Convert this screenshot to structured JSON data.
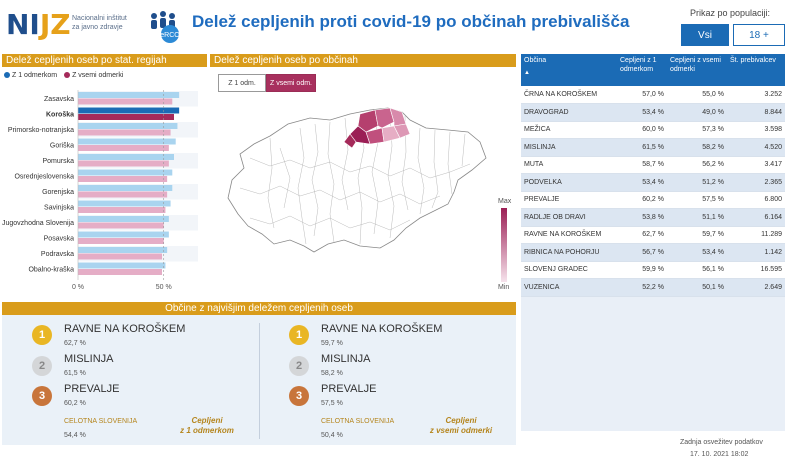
{
  "header": {
    "logo_text_a": "NI",
    "logo_text_b": "JZ",
    "logo_sub_line1": "Nacionalni inštitut",
    "logo_sub_line2": "za javno zdravje",
    "logo_badge": "eRCO",
    "title": "Delež cepljenih proti covid-19 po občinah prebivališča"
  },
  "population_filter": {
    "label": "Prikaz po populaciji:",
    "options": [
      "Vsi",
      "18 +"
    ],
    "selected": "Vsi"
  },
  "region_section": {
    "title": "Delež cepljenih oseb po stat. regijah",
    "legend": [
      "Z 1 odmerkom",
      "Z vsemi odmerki"
    ],
    "colors": {
      "dose1": "#a9d4ef",
      "all": "#e5adc6",
      "selected": "#a52a5a",
      "selected1": "#1b6bb5"
    }
  },
  "chart_data": {
    "type": "bar",
    "orientation": "horizontal",
    "categories": [
      "Zasavska",
      "Koroška",
      "Primorsko-notranjska",
      "Goriška",
      "Pomurska",
      "Osrednjeslovenska",
      "Gorenjska",
      "Savinjska",
      "Jugovzhodna Slovenija",
      "Posavska",
      "Podravska",
      "Obalno-kraška"
    ],
    "selected_category": "Koroška",
    "series": [
      {
        "name": "Z 1 odmerkom",
        "values": [
          59,
          59,
          58,
          57,
          56,
          55,
          55,
          54,
          53,
          53,
          52,
          51
        ]
      },
      {
        "name": "Z vsemi odmerki",
        "values": [
          55,
          56,
          54,
          53,
          53,
          52,
          52,
          51,
          50,
          50,
          49,
          49
        ]
      }
    ],
    "x_ticks": [
      "0 %",
      "50 %"
    ],
    "xlim": [
      0,
      70
    ],
    "title": "Delež cepljenih oseb po stat. regijah",
    "legend_position": "top-left"
  },
  "map_section": {
    "title": "Delež cepljenih oseb po občinah",
    "toggle_dose1": "Z 1 odm.",
    "toggle_all": "Z vsemi odm.",
    "scale_max": "Max",
    "scale_min": "Min"
  },
  "table": {
    "headers": [
      "Občina",
      "Cepljeni z 1 odmerkom",
      "Cepljeni z vsemi odmerki",
      "Št. prebivalcev"
    ],
    "rows": [
      [
        "ČRNA NA KOROŠKEM",
        "57,0 %",
        "55,0 %",
        "3.252"
      ],
      [
        "DRAVOGRAD",
        "53,4 %",
        "49,0 %",
        "8.844"
      ],
      [
        "MEŽICA",
        "60,0 %",
        "57,3 %",
        "3.598"
      ],
      [
        "MISLINJA",
        "61,5 %",
        "58,2 %",
        "4.520"
      ],
      [
        "MUTA",
        "58,7 %",
        "56,2 %",
        "3.417"
      ],
      [
        "PODVELKA",
        "53,4 %",
        "51,2 %",
        "2.365"
      ],
      [
        "PREVALJE",
        "60,2 %",
        "57,5 %",
        "6.800"
      ],
      [
        "RADLJE OB DRAVI",
        "53,8 %",
        "51,1 %",
        "6.164"
      ],
      [
        "RAVNE NA KOROŠKEM",
        "62,7 %",
        "59,7 %",
        "11.289"
      ],
      [
        "RIBNICA NA POHORJU",
        "56,7 %",
        "53,4 %",
        "1.142"
      ],
      [
        "SLOVENJ GRADEC",
        "59,9 %",
        "56,1 %",
        "16.595"
      ],
      [
        "VUZENICA",
        "52,2 %",
        "50,1 %",
        "2.649"
      ]
    ]
  },
  "top_section": {
    "title": "Občine z najvišjim deležem cepljenih oseb",
    "dose1": {
      "ranks": [
        {
          "n": "1",
          "name": "RAVNE NA KOROŠKEM",
          "value": "62,7 %"
        },
        {
          "n": "2",
          "name": "MISLINJA",
          "value": "61,5 %"
        },
        {
          "n": "3",
          "name": "PREVALJE",
          "value": "60,2 %"
        }
      ],
      "total_label": "CELOTNA SLOVENIJA",
      "total_value": "54,4 %",
      "caption_line1": "Cepljeni",
      "caption_line2": "z 1 odmerkom"
    },
    "all": {
      "ranks": [
        {
          "n": "1",
          "name": "RAVNE NA KOROŠKEM",
          "value": "59,7 %"
        },
        {
          "n": "2",
          "name": "MISLINJA",
          "value": "58,2 %"
        },
        {
          "n": "3",
          "name": "PREVALJE",
          "value": "57,5 %"
        }
      ],
      "total_label": "CELOTNA SLOVENIJA",
      "total_value": "50,4 %",
      "caption_line1": "Cepljeni",
      "caption_line2": "z vsemi odmerki"
    }
  },
  "footer": {
    "label": "Zadnja osvežitev podatkov",
    "date": "17. 10. 2021 18:02"
  }
}
